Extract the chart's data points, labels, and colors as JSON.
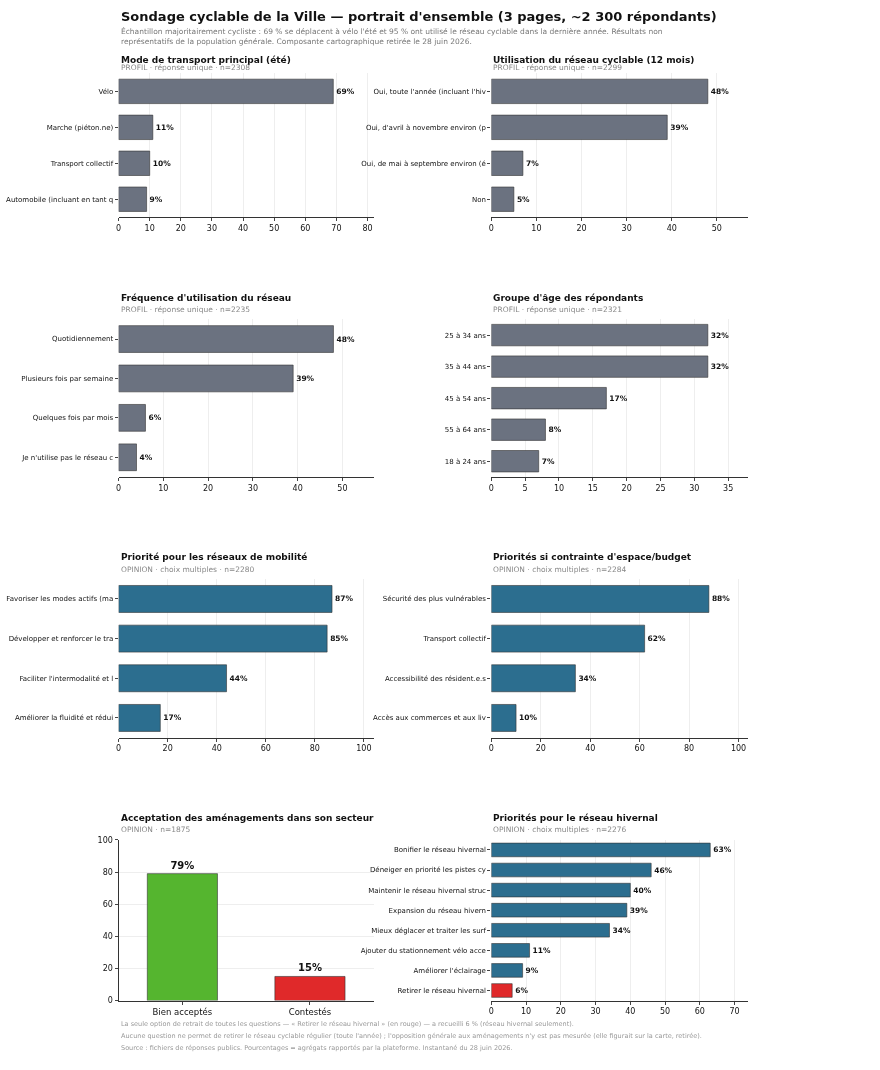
{
  "chart_data": [
    {
      "type": "other",
      "title": "Sondage cyclable de la Ville — portrait d'ensemble (3 pages, ~2 300 répondants)",
      "subtitle": "Échantillon majoritairement cycliste : 69 % se déplacent à vélo l'été et 95 % ont utilisé le réseau cyclable dans la dernière année. Résultats non représentatifs de la population générale. Composante cartographique retirée le 28 juin 2026."
    },
    {
      "type": "bar",
      "orientation": "horizontal",
      "title": "Mode de transport principal (été)",
      "subtitle": "PROFIL · réponse unique · n=2308",
      "categories": [
        "Vélo",
        "Marche (piéton.ne)",
        "Transport collectif",
        "Automobile (incluant en tant q"
      ],
      "values": [
        69,
        11,
        10,
        9
      ],
      "value_labels": [
        "69%",
        "11%",
        "10%",
        "9%"
      ],
      "color": "#6b7280",
      "xlim": [
        0,
        82
      ],
      "xticks": [
        0,
        10,
        20,
        30,
        40,
        50,
        60,
        70,
        80
      ],
      "grid": "x"
    },
    {
      "type": "bar",
      "orientation": "horizontal",
      "title": "Utilisation du réseau cyclable (12 mois)",
      "subtitle": "PROFIL · réponse unique · n=2299",
      "categories": [
        "Oui, toute l'année (incluant l'hiv",
        "Oui, d'avril à novembre environ (p",
        "Oui, de mai à septembre environ (é",
        "Non"
      ],
      "values": [
        48,
        39,
        7,
        5
      ],
      "value_labels": [
        "48%",
        "39%",
        "7%",
        "5%"
      ],
      "color": "#6b7280",
      "xlim": [
        0,
        57
      ],
      "xticks": [
        0,
        10,
        20,
        30,
        40,
        50
      ],
      "grid": "x"
    },
    {
      "type": "bar",
      "orientation": "horizontal",
      "title": "Fréquence d'utilisation du réseau",
      "subtitle": "PROFIL · réponse unique · n=2235",
      "categories": [
        "Quotidiennement",
        "Plusieurs fois par semaine",
        "Quelques fois par mois",
        "Je n'utilise pas le réseau c"
      ],
      "values": [
        48,
        39,
        6,
        4
      ],
      "value_labels": [
        "48%",
        "39%",
        "6%",
        "4%"
      ],
      "color": "#6b7280",
      "xlim": [
        0,
        57
      ],
      "xticks": [
        0,
        10,
        20,
        30,
        40,
        50
      ],
      "grid": "x"
    },
    {
      "type": "bar",
      "orientation": "horizontal",
      "title": "Groupe d'âge des répondants",
      "subtitle": "PROFIL · réponse unique · n=2321",
      "categories": [
        "25 à 34 ans",
        "35 à 44 ans",
        "45 à 54 ans",
        "55 à 64 ans",
        "18 à 24 ans"
      ],
      "values": [
        32,
        32,
        17,
        8,
        7
      ],
      "value_labels": [
        "32%",
        "32%",
        "17%",
        "8%",
        "7%"
      ],
      "color": "#6b7280",
      "xlim": [
        0,
        38
      ],
      "xticks": [
        0,
        5,
        10,
        15,
        20,
        25,
        30,
        35
      ],
      "grid": "x"
    },
    {
      "type": "bar",
      "orientation": "horizontal",
      "title": "Priorité pour les réseaux de mobilité",
      "subtitle": "OPINION · choix multiples · n=2280",
      "categories": [
        "Favoriser les modes actifs (ma",
        "Développer et renforcer le tra",
        "Faciliter l'intermodalité et l",
        "Améliorer la fluidité et rédui"
      ],
      "values": [
        87,
        85,
        44,
        17
      ],
      "value_labels": [
        "87%",
        "85%",
        "44%",
        "17%"
      ],
      "color": "#2c6e8f",
      "xlim": [
        0,
        104
      ],
      "xticks": [
        0,
        20,
        40,
        60,
        80,
        100
      ],
      "grid": "x"
    },
    {
      "type": "bar",
      "orientation": "horizontal",
      "title": "Priorités si contrainte d'espace/budget",
      "subtitle": "OPINION · choix multiples · n=2284",
      "categories": [
        "Sécurité des plus vulnérables",
        "Transport collectif",
        "Accessibilité des résident.e.s",
        "Accès aux commerces et aux liv"
      ],
      "values": [
        88,
        62,
        34,
        10
      ],
      "value_labels": [
        "88%",
        "62%",
        "34%",
        "10%"
      ],
      "color": "#2c6e8f",
      "xlim": [
        0,
        104
      ],
      "xticks": [
        0,
        20,
        40,
        60,
        80,
        100
      ],
      "grid": "x"
    },
    {
      "type": "bar",
      "title": "Acceptation des aménagements dans son secteur",
      "subtitle": "OPINION · n=1875",
      "categories": [
        "Bien acceptés",
        "Contestés"
      ],
      "values": [
        79,
        15
      ],
      "value_labels": [
        "79%",
        "15%"
      ],
      "colors": [
        "#55b52f",
        "#e0292a"
      ],
      "ylim": [
        0,
        100
      ],
      "yticks": [
        0,
        20,
        40,
        60,
        80,
        100
      ],
      "grid": "y"
    },
    {
      "type": "bar",
      "orientation": "horizontal",
      "title": "Priorités pour le réseau hivernal",
      "subtitle": "OPINION · choix multiples · n=2276",
      "categories": [
        "Bonifier le réseau hivernal",
        "Déneiger en priorité les pistes cy",
        "Maintenir le réseau hivernal struc",
        "Expansion du réseau hivern",
        "Mieux déglacer et traiter les surf",
        "Ajouter du stationnement vélo acce",
        "Améliorer l'éclairage",
        "Retirer le réseau hivernal"
      ],
      "values": [
        63,
        46,
        40,
        39,
        34,
        11,
        9,
        6
      ],
      "value_labels": [
        "63%",
        "46%",
        "40%",
        "39%",
        "34%",
        "11%",
        "9%",
        "6%"
      ],
      "colors": [
        "#2c6e8f",
        "#2c6e8f",
        "#2c6e8f",
        "#2c6e8f",
        "#2c6e8f",
        "#2c6e8f",
        "#2c6e8f",
        "#e0292a"
      ],
      "xlim": [
        0,
        74
      ],
      "xticks": [
        0,
        10,
        20,
        30,
        40,
        50,
        60,
        70
      ],
      "grid": "x"
    },
    {
      "type": "other",
      "annotations": [
        "La seule option de retrait de toutes les questions — « Retirer le réseau hivernal » (en rouge) — a recueilli 6 % (réseau hivernal seulement).",
        "Aucune question ne permet de retirer le réseau cyclable régulier (toute l'année) ; l'opposition générale aux aménagements n'y est pas mesurée (elle figurait sur la carte, retirée).",
        "Source : fichiers de réponses publics. Pourcentages = agrégats rapportés par la plateforme. Instantané du 28 juin 2026."
      ]
    }
  ]
}
